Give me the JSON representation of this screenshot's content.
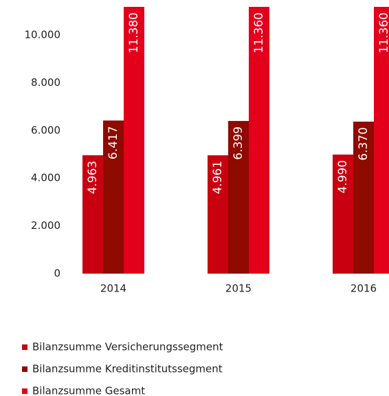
{
  "chart_data": {
    "type": "bar",
    "categories": [
      "2014",
      "2015",
      "2016"
    ],
    "series": [
      {
        "name": "Bilanzsumme Versicherungssegment",
        "color": "#c8000f",
        "values": [
          4963,
          4961,
          4990
        ],
        "value_labels": [
          "4.963",
          "4.961",
          "4.990"
        ]
      },
      {
        "name": "Bilanzsumme Kreditinstitutssegment",
        "color": "#8f0a00",
        "values": [
          6417,
          6399,
          6370
        ],
        "value_labels": [
          "6.417",
          "6.399",
          "6.370"
        ]
      },
      {
        "name": "Bilanzsumme Gesamt",
        "color": "#e2001a",
        "values": [
          11380,
          11360,
          11360
        ],
        "value_labels": [
          "11.380",
          "11.360",
          "11.360"
        ]
      }
    ],
    "ylim": [
      0,
      11180
    ],
    "yticks": [
      0,
      {
        "value": 2000,
        "label": "2.000"
      },
      {
        "value": 4000,
        "label": "4.000"
      },
      {
        "value": 6000,
        "label": "6.000"
      },
      {
        "value": 8000,
        "label": "8.000"
      },
      {
        "value": 10000,
        "label": "10.000"
      }
    ],
    "grid": false,
    "legend": "bottom"
  }
}
